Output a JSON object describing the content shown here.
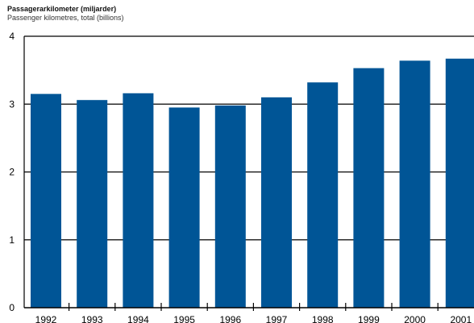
{
  "chart_data": {
    "type": "bar",
    "title": "Passagerarkilometer (miljarder)",
    "subtitle": "Passenger kilometres, total (billions)",
    "xlabel": "",
    "ylabel": "",
    "categories": [
      "1992",
      "1993",
      "1994",
      "1995",
      "1996",
      "1997",
      "1998",
      "1999",
      "2000",
      "2001"
    ],
    "values": [
      3.15,
      3.06,
      3.16,
      2.95,
      2.98,
      3.1,
      3.32,
      3.53,
      3.64,
      3.67
    ],
    "ylim": [
      0,
      4
    ],
    "yticks": [
      "0",
      "1",
      "2",
      "3",
      "4"
    ],
    "grid": true,
    "colors": {
      "bar": "#005596",
      "grid": "#000000",
      "axis": "#000000"
    }
  }
}
